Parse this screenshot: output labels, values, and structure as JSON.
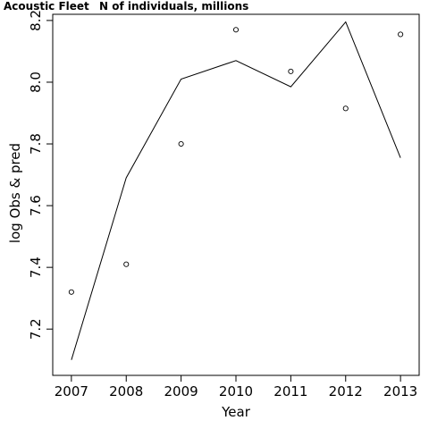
{
  "chart_data": {
    "type": "line",
    "title": "Acoustic Fleet",
    "subtitle": "N of individuals, millions",
    "xlabel": "Year",
    "ylabel": "log Obs & pred",
    "x": [
      2007,
      2008,
      2009,
      2010,
      2011,
      2012,
      2013
    ],
    "xlim": [
      2006.66,
      2013.34
    ],
    "ylim": [
      7.05,
      8.22
    ],
    "x_ticks": [
      "2007",
      "2008",
      "2009",
      "2010",
      "2011",
      "2012",
      "2013"
    ],
    "y_ticks": [
      "7.2",
      "7.4",
      "7.6",
      "7.8",
      "8.0",
      "8.2"
    ],
    "grid": false,
    "series": [
      {
        "kind": "points",
        "marker": "open-circle",
        "values": [
          7.32,
          7.41,
          7.8,
          8.17,
          8.035,
          7.915,
          8.155
        ]
      },
      {
        "kind": "line",
        "values": [
          7.1,
          7.69,
          8.01,
          8.07,
          7.985,
          8.195,
          7.755
        ]
      }
    ],
    "colors": {
      "line": "#000000",
      "points": "#000000",
      "background": "#ffffff"
    }
  }
}
